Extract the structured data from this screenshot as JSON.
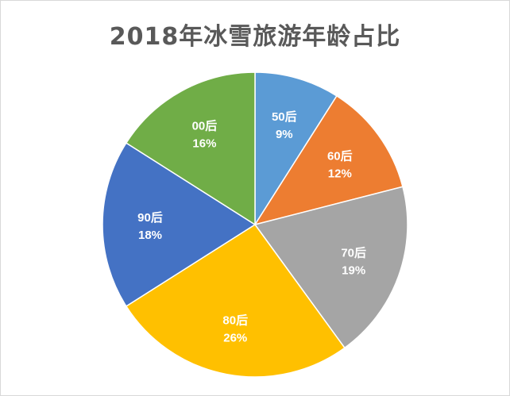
{
  "chart_data": {
    "type": "pie",
    "title": "2018年冰雪旅游年龄占比",
    "categories": [
      "50后",
      "60后",
      "70后",
      "80后",
      "90后",
      "00后"
    ],
    "values": [
      9,
      12,
      19,
      26,
      18,
      16
    ],
    "value_labels": [
      "9%",
      "12%",
      "19%",
      "26%",
      "18%",
      "16%"
    ],
    "colors": [
      "#5b9bd5",
      "#ed7d31",
      "#a5a5a5",
      "#ffc000",
      "#4472c4",
      "#70ad47"
    ],
    "start_angle": "12 o'clock",
    "direction": "clockwise",
    "legend": "none",
    "data_labels": "inside"
  }
}
